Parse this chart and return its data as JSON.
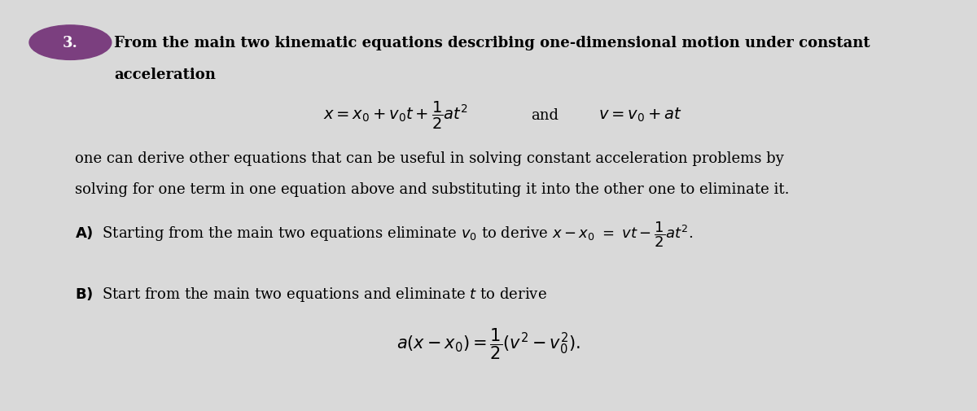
{
  "bg_color": "#d9d9d9",
  "text_color": "#000000",
  "circle_color": "#7b3f7f",
  "fig_width": 12.0,
  "fig_height": 5.06,
  "dpi": 100,
  "number_label": "3.",
  "line1": "From the main two kinematic equations describing one-dimensional motion under constant",
  "line2": "acceleration",
  "and_text": "and",
  "body1": "one can derive other equations that can be useful in solving constant acceleration problems by",
  "body2": "solving for one term in one equation above and substituting it into the other one to eliminate it.",
  "font_size_main": 13,
  "font_size_eq": 14,
  "font_size_parts": 13
}
